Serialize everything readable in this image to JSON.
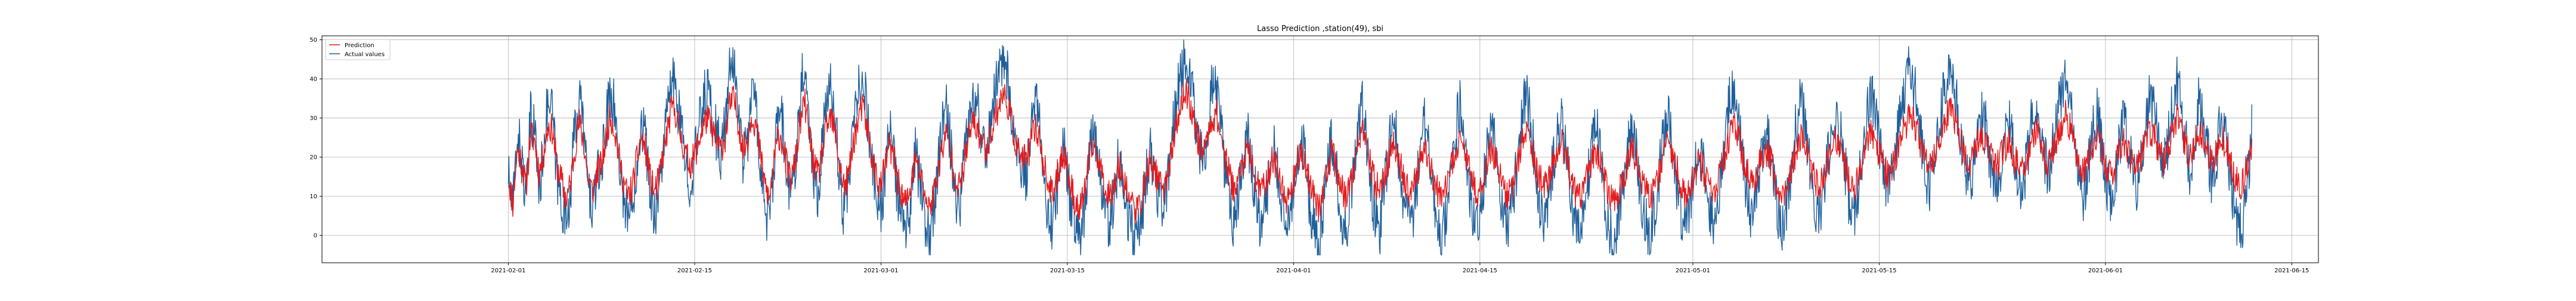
{
  "chart_data": {
    "type": "line",
    "title": "Lasso Prediction ,station(49), sbi",
    "xlabel": "",
    "ylabel": "",
    "x_range": [
      "2021-01-18",
      "2021-06-17"
    ],
    "ylim": [
      -7,
      51
    ],
    "grid": true,
    "legend_position": "top-left",
    "x_ticks": [
      "2021-02-01",
      "2021-02-15",
      "2021-03-01",
      "2021-03-15",
      "2021-04-01",
      "2021-04-15",
      "2021-05-01",
      "2021-05-15",
      "2021-06-01",
      "2021-06-15"
    ],
    "y_ticks": [
      0,
      10,
      20,
      30,
      40,
      50
    ],
    "x_start": "2021-02-01",
    "x_end": "2021-06-12",
    "series": [
      {
        "name": "Prediction",
        "color": "#e41a1c",
        "values": [
          15,
          8,
          22,
          19,
          12,
          26,
          24,
          16,
          21,
          28,
          27,
          18,
          14,
          9,
          13,
          22,
          29,
          24,
          15,
          11,
          16,
          18,
          24,
          31,
          27,
          20,
          14,
          10,
          12,
          19,
          25,
          22,
          15,
          11,
          14,
          21,
          27,
          33,
          31,
          25,
          21,
          18,
          20,
          24,
          28,
          30,
          27,
          24,
          22,
          25,
          33,
          35,
          29,
          22,
          24,
          31,
          28,
          20,
          13,
          9,
          18,
          26,
          24,
          17,
          14,
          20,
          29,
          34,
          26,
          18,
          15,
          22,
          28,
          30,
          25,
          17,
          12,
          16,
          24,
          29,
          33,
          28,
          21,
          16,
          12,
          17,
          23,
          20,
          14,
          10,
          8,
          13,
          19,
          16,
          11,
          7,
          10,
          16,
          22,
          26,
          21,
          15,
          12,
          18,
          25,
          29,
          27,
          24,
          22,
          26,
          30,
          34,
          36,
          33,
          27,
          22,
          20,
          19,
          23,
          28,
          25,
          18,
          13,
          10,
          15,
          21,
          19,
          13,
          9,
          6,
          10,
          17,
          23,
          21,
          16,
          12,
          10,
          14,
          18,
          15,
          11,
          8,
          6,
          9,
          14,
          19,
          17,
          13,
          12,
          16,
          22,
          28,
          33,
          37,
          34,
          29,
          24,
          21,
          25,
          30,
          31,
          26,
          20,
          15,
          12,
          14,
          19,
          22,
          18,
          14,
          11,
          13,
          17,
          20,
          16,
          12,
          9,
          12,
          17,
          22,
          19,
          14,
          10,
          7,
          11,
          16,
          21,
          18,
          13,
          10,
          12,
          17,
          23,
          26,
          22,
          17,
          13,
          11,
          15,
          20,
          24,
          21,
          16,
          12,
          10,
          14,
          19,
          23,
          20,
          15,
          11,
          9,
          12,
          17,
          21,
          25,
          22,
          17,
          13,
          11,
          14,
          18,
          22,
          20,
          16,
          12,
          10,
          13,
          18,
          23,
          27,
          24,
          19,
          15,
          12,
          14,
          18,
          21,
          24,
          20,
          15,
          11,
          9,
          12,
          16,
          20,
          22,
          18,
          13,
          10,
          8,
          11,
          15,
          19,
          22,
          19,
          14,
          11,
          9,
          12,
          16,
          21,
          24,
          21,
          17,
          13,
          10,
          12,
          16,
          19,
          17,
          13,
          10,
          12,
          16,
          21,
          25,
          28,
          25,
          20,
          16,
          13,
          15,
          19,
          22,
          20,
          16,
          12,
          10,
          13,
          17,
          22,
          25,
          23,
          19,
          15,
          12,
          14,
          18,
          21,
          24,
          22,
          18,
          14,
          12,
          15,
          19,
          23,
          26,
          24,
          20,
          17,
          15,
          18,
          22,
          26,
          29,
          31,
          28,
          24,
          20,
          17,
          19,
          23,
          27,
          30,
          33,
          29,
          25,
          21,
          18,
          20,
          23,
          26,
          24,
          20,
          17,
          19,
          22,
          25,
          21,
          18,
          16,
          19,
          23,
          27,
          25,
          21,
          18,
          21,
          25,
          28,
          31,
          27,
          22,
          18,
          16,
          19,
          23,
          26,
          22,
          18,
          15,
          17,
          21,
          24,
          22,
          19,
          17,
          20,
          24,
          27,
          25,
          22,
          19,
          22,
          26,
          30,
          27,
          23,
          20,
          23,
          27,
          25,
          21,
          18,
          21,
          26,
          23,
          19,
          16,
          12,
          14,
          18,
          22
        ],
        "noise_seed": 11,
        "noise_amplitude": 4
      },
      {
        "name": "Actual values",
        "color": "#1f5f9a",
        "values": [
          16,
          6,
          26,
          20,
          8,
          30,
          27,
          10,
          24,
          34,
          31,
          14,
          9,
          4,
          11,
          27,
          36,
          28,
          12,
          7,
          14,
          17,
          28,
          38,
          32,
          20,
          10,
          5,
          8,
          18,
          30,
          25,
          11,
          6,
          10,
          23,
          32,
          40,
          36,
          27,
          19,
          14,
          18,
          27,
          34,
          38,
          31,
          26,
          21,
          28,
          41,
          44,
          33,
          20,
          24,
          38,
          32,
          18,
          7,
          3,
          16,
          32,
          28,
          14,
          10,
          21,
          36,
          45,
          30,
          15,
          11,
          25,
          34,
          38,
          29,
          12,
          5,
          12,
          28,
          36,
          41,
          33,
          19,
          11,
          6,
          14,
          27,
          22,
          9,
          3,
          1,
          8,
          21,
          14,
          4,
          0,
          5,
          16,
          27,
          32,
          23,
          11,
          7,
          19,
          31,
          37,
          33,
          26,
          22,
          30,
          37,
          43,
          45,
          40,
          29,
          19,
          16,
          15,
          24,
          35,
          28,
          14,
          6,
          2,
          11,
          24,
          20,
          8,
          2,
          -1,
          5,
          18,
          29,
          24,
          12,
          5,
          3,
          12,
          20,
          14,
          5,
          1,
          -1,
          4,
          13,
          22,
          17,
          9,
          7,
          15,
          26,
          35,
          41,
          46,
          42,
          33,
          23,
          18,
          27,
          38,
          39,
          28,
          16,
          7,
          3,
          9,
          20,
          26,
          18,
          9,
          3,
          7,
          16,
          22,
          14,
          5,
          1,
          6,
          16,
          26,
          20,
          8,
          2,
          -2,
          4,
          15,
          25,
          18,
          6,
          1,
          6,
          17,
          29,
          34,
          24,
          12,
          4,
          2,
          12,
          23,
          30,
          23,
          11,
          4,
          2,
          10,
          21,
          29,
          22,
          9,
          3,
          0,
          6,
          17,
          26,
          33,
          26,
          14,
          6,
          3,
          10,
          19,
          28,
          23,
          13,
          5,
          2,
          8,
          19,
          29,
          36,
          30,
          18,
          9,
          4,
          8,
          18,
          25,
          31,
          22,
          10,
          3,
          0,
          5,
          14,
          24,
          28,
          19,
          7,
          1,
          -1,
          4,
          13,
          22,
          28,
          20,
          8,
          3,
          1,
          6,
          15,
          26,
          32,
          25,
          14,
          6,
          2,
          7,
          15,
          22,
          18,
          8,
          3,
          6,
          15,
          27,
          34,
          38,
          31,
          19,
          10,
          5,
          10,
          19,
          27,
          23,
          13,
          5,
          2,
          8,
          17,
          28,
          34,
          29,
          19,
          10,
          5,
          9,
          18,
          25,
          31,
          27,
          18,
          9,
          5,
          12,
          21,
          30,
          36,
          31,
          22,
          14,
          11,
          17,
          26,
          35,
          40,
          43,
          36,
          27,
          18,
          12,
          16,
          25,
          34,
          39,
          44,
          36,
          27,
          18,
          12,
          17,
          24,
          31,
          27,
          18,
          12,
          16,
          23,
          30,
          22,
          15,
          11,
          18,
          27,
          35,
          30,
          21,
          15,
          22,
          31,
          37,
          42,
          34,
          23,
          14,
          10,
          17,
          26,
          32,
          24,
          15,
          9,
          13,
          22,
          29,
          24,
          17,
          13,
          20,
          29,
          36,
          31,
          23,
          17,
          24,
          33,
          40,
          34,
          24,
          17,
          25,
          35,
          30,
          21,
          14,
          20,
          31,
          25,
          16,
          8,
          0,
          4,
          14,
          27
        ]
      }
    ]
  }
}
